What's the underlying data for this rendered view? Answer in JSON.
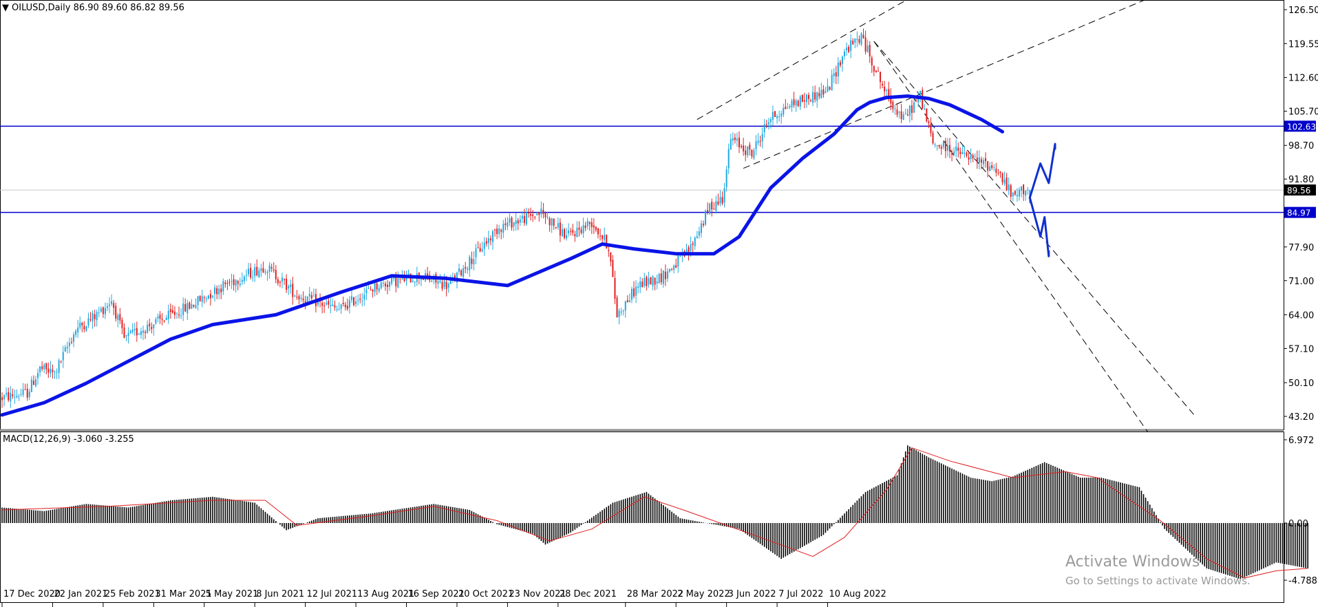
{
  "header": {
    "symbol_line": "OILUSD,Daily  86.90 89.60 86.82 89.56",
    "macd_line": "MACD(12,26,9) -3.060 -3.255"
  },
  "watermark": {
    "title": "Activate Windows",
    "subtitle": "Go to Settings to activate Windows."
  },
  "colors": {
    "bull": "#1fa8e0",
    "bear": "#e01e1e",
    "ma": "#0a14e6",
    "level_line": "#0000cc",
    "price_tag": "#0000cc",
    "current_tag": "#000000",
    "macd_hist": "#000000",
    "macd_signal": "#e01e1e",
    "trendline": "#000000",
    "drawing": "#1030d0"
  },
  "chart_data": [
    {
      "type": "candlestick",
      "name": "OILUSD Daily",
      "ylim": [
        40,
        128
      ],
      "y_ticks": [
        "126.50",
        "119.55",
        "112.60",
        "105.70",
        "98.70",
        "91.80",
        "84.97",
        "77.90",
        "71.00",
        "64.00",
        "57.10",
        "50.10",
        "43.20"
      ],
      "x_ticks": [
        "17 Dec 2020",
        "22 Jan 2021",
        "25 Feb 2021",
        "31 Mar 2021",
        "5 May 2021",
        "8 Jun 2021",
        "12 Jul 2021",
        "13 Aug 2021",
        "16 Sep 2021",
        "20 Oct 2021",
        "23 Nov 2021",
        "28 Dec 2021",
        "28 Mar 2022",
        "2 May 2022",
        "3 Jun 2022",
        "7 Jul 2022",
        "10 Aug 2022"
      ],
      "price_path": [
        [
          0,
          47
        ],
        [
          12,
          48
        ],
        [
          18,
          53
        ],
        [
          25,
          52
        ],
        [
          35,
          61
        ],
        [
          45,
          64
        ],
        [
          52,
          67
        ],
        [
          58,
          59
        ],
        [
          66,
          61
        ],
        [
          76,
          63
        ],
        [
          90,
          66
        ],
        [
          105,
          70
        ],
        [
          125,
          74
        ],
        [
          140,
          68
        ],
        [
          160,
          65
        ],
        [
          178,
          70
        ],
        [
          198,
          72
        ],
        [
          212,
          70
        ],
        [
          236,
          82
        ],
        [
          256,
          85
        ],
        [
          268,
          80
        ],
        [
          280,
          83
        ],
        [
          288,
          78
        ],
        [
          292,
          64
        ],
        [
          302,
          70
        ],
        [
          314,
          72
        ],
        [
          326,
          77
        ],
        [
          336,
          86
        ],
        [
          342,
          88
        ],
        [
          346,
          100
        ],
        [
          356,
          97
        ],
        [
          364,
          104
        ],
        [
          374,
          107
        ],
        [
          392,
          110
        ],
        [
          400,
          118
        ],
        [
          408,
          121
        ],
        [
          414,
          115
        ],
        [
          420,
          109
        ],
        [
          428,
          104
        ],
        [
          436,
          109
        ],
        [
          442,
          99
        ],
        [
          450,
          98
        ],
        [
          460,
          96
        ],
        [
          472,
          94
        ],
        [
          480,
          88
        ],
        [
          486,
          90
        ],
        [
          488,
          89.56
        ]
      ],
      "last": {
        "open": 86.9,
        "high": 89.6,
        "low": 86.82,
        "close": 89.56
      },
      "moving_average": [
        [
          0,
          43.5
        ],
        [
          20,
          46
        ],
        [
          40,
          50
        ],
        [
          60,
          54.5
        ],
        [
          80,
          59
        ],
        [
          100,
          62
        ],
        [
          130,
          64
        ],
        [
          160,
          68.5
        ],
        [
          185,
          72
        ],
        [
          210,
          71.5
        ],
        [
          240,
          70
        ],
        [
          270,
          75.5
        ],
        [
          285,
          78.5
        ],
        [
          300,
          77.5
        ],
        [
          320,
          76.5
        ],
        [
          338,
          76.5
        ],
        [
          350,
          80
        ],
        [
          365,
          90
        ],
        [
          380,
          96
        ],
        [
          395,
          101
        ],
        [
          406,
          106
        ],
        [
          412,
          107.5
        ],
        [
          420,
          108.5
        ],
        [
          430,
          108.8
        ],
        [
          440,
          108.3
        ],
        [
          450,
          107
        ],
        [
          465,
          104
        ],
        [
          475,
          101.5
        ]
      ],
      "horizontal_levels": [
        {
          "value": 102.63,
          "label": "102.63"
        },
        {
          "value": 84.97,
          "label": "84.97"
        }
      ],
      "current_price": {
        "value": 89.56,
        "label": "89.56"
      },
      "trendlines": [
        {
          "from": [
            330,
            104
          ],
          "to": [
            460,
            136
          ]
        },
        {
          "from": [
            352,
            94
          ],
          "to": [
            562,
            132
          ]
        },
        {
          "from": [
            414,
            120
          ],
          "to": [
            567,
            43
          ]
        },
        {
          "from": [
            414,
            120
          ],
          "to": [
            544,
            40
          ]
        }
      ],
      "annotations": [
        {
          "label": "bullish scenario",
          "path": [
            [
              488,
              88
            ],
            [
              493,
              95
            ],
            [
              497,
              91
            ],
            [
              500,
              99
            ],
            [
              500,
              98
            ]
          ]
        },
        {
          "label": "bearish scenario",
          "path": [
            [
              488,
              88
            ],
            [
              493,
              80
            ],
            [
              495,
              84
            ],
            [
              497,
              76
            ],
            [
              497,
              77
            ]
          ]
        }
      ]
    },
    {
      "type": "histogram",
      "name": "MACD(12,26,9)",
      "ylim": [
        -4.788,
        6.972
      ],
      "y_ticks": [
        "6.972",
        "0.00",
        "-4.788"
      ],
      "values_macd_path": [
        [
          0,
          1.3
        ],
        [
          20,
          1.0
        ],
        [
          40,
          1.6
        ],
        [
          60,
          1.3
        ],
        [
          80,
          1.9
        ],
        [
          100,
          2.2
        ],
        [
          120,
          1.7
        ],
        [
          135,
          -0.6
        ],
        [
          150,
          0.4
        ],
        [
          175,
          0.8
        ],
        [
          205,
          1.6
        ],
        [
          222,
          1.1
        ],
        [
          235,
          -0.1
        ],
        [
          252,
          -0.9
        ],
        [
          258,
          -1.8
        ],
        [
          270,
          -0.8
        ],
        [
          290,
          1.7
        ],
        [
          306,
          2.6
        ],
        [
          322,
          0.4
        ],
        [
          350,
          -0.5
        ],
        [
          370,
          -3.0
        ],
        [
          380,
          -2.0
        ],
        [
          390,
          -1.0
        ],
        [
          410,
          2.6
        ],
        [
          425,
          4.0
        ],
        [
          430,
          6.5
        ],
        [
          440,
          5.5
        ],
        [
          460,
          3.8
        ],
        [
          470,
          3.5
        ],
        [
          480,
          3.9
        ],
        [
          495,
          5.1
        ],
        [
          512,
          3.8
        ],
        [
          522,
          3.8
        ],
        [
          540,
          3.0
        ],
        [
          552,
          -0.5
        ],
        [
          572,
          -3.8
        ],
        [
          588,
          -4.7
        ],
        [
          605,
          -3.3
        ],
        [
          620,
          -3.8
        ]
      ],
      "signal_path": [
        [
          0,
          1.1
        ],
        [
          50,
          1.4
        ],
        [
          100,
          1.9
        ],
        [
          125,
          1.9
        ],
        [
          140,
          -0.2
        ],
        [
          175,
          0.6
        ],
        [
          205,
          1.4
        ],
        [
          235,
          0.2
        ],
        [
          260,
          -1.5
        ],
        [
          280,
          -0.5
        ],
        [
          305,
          2.2
        ],
        [
          325,
          1.0
        ],
        [
          360,
          -1.2
        ],
        [
          385,
          -2.8
        ],
        [
          400,
          -1.2
        ],
        [
          420,
          2.8
        ],
        [
          432,
          6.3
        ],
        [
          450,
          5.2
        ],
        [
          480,
          3.8
        ],
        [
          505,
          4.3
        ],
        [
          520,
          3.8
        ],
        [
          550,
          0.2
        ],
        [
          572,
          -3.0
        ],
        [
          590,
          -4.6
        ],
        [
          605,
          -4.0
        ],
        [
          620,
          -3.8
        ]
      ],
      "signal_value": -3.255,
      "macd_value": -3.06
    }
  ]
}
